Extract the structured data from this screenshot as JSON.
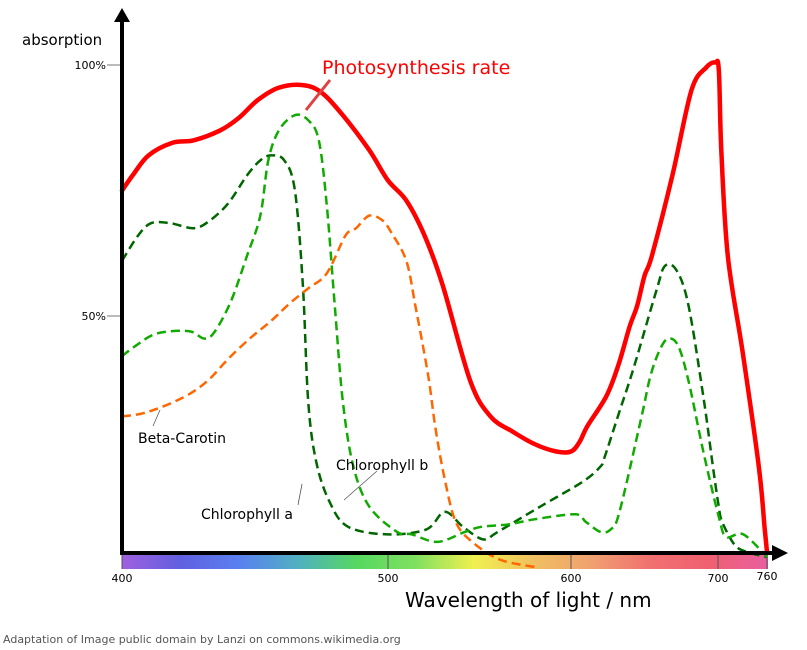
{
  "credit": "Adaptation of Image public domain by Lanzi on commons.wikimedia.org",
  "chart_data": {
    "type": "line",
    "title": "",
    "xlabel": "Wavelength of light / nm",
    "ylabel": "absorption",
    "xlim": [
      400,
      760
    ],
    "ylim": [
      0,
      100
    ],
    "x_ticks": [
      400,
      500,
      600,
      700,
      760
    ],
    "x_tick_labels": [
      "400",
      "500",
      "600",
      "700",
      "760"
    ],
    "y_ticks": [
      50,
      100
    ],
    "y_tick_labels": [
      "50%",
      "100%"
    ],
    "grid": false,
    "x_axis_spectrum_bar": true,
    "series": [
      {
        "name": "Photosynthesis rate",
        "style": "solid",
        "color": "#ff0000",
        "label_color": "#ff0000",
        "x": [
          400,
          404,
          410,
          419,
          427,
          437,
          444,
          451,
          459,
          468,
          475,
          483,
          493,
          500,
          510,
          520,
          530,
          545,
          556,
          568,
          580,
          592,
          600,
          606,
          611,
          624,
          632,
          640,
          645,
          650,
          655,
          669,
          682,
          692,
          698,
          701,
          704,
          712,
          730,
          750,
          757,
          760
        ],
        "y": [
          75,
          78,
          82,
          84.5,
          85,
          87,
          89.5,
          93,
          95.5,
          96,
          94.5,
          90,
          83,
          77,
          73,
          66,
          56,
          37,
          30,
          27,
          24.5,
          23,
          23,
          25,
          28,
          34,
          40,
          48,
          52,
          58,
          62,
          78,
          95,
          99.5,
          100.5,
          99,
          83,
          62,
          43,
          20,
          8,
          3
        ],
        "label": "Photosynthesis rate"
      },
      {
        "name": "Chlorophyll a",
        "style": "dashed",
        "color": "#006600",
        "x": [
          400,
          406,
          411,
          418,
          427,
          433,
          440,
          447,
          452,
          456,
          461,
          465,
          468,
          470,
          473,
          478,
          485,
          500,
          521,
          531,
          541,
          552,
          560,
          583,
          608,
          620,
          623,
          633,
          643,
          658,
          664,
          672,
          680,
          690,
          697,
          701,
          705,
          720,
          735,
          760
        ],
        "y": [
          61,
          66,
          68.5,
          68.5,
          67.5,
          69,
          72.5,
          78,
          81,
          82,
          81,
          75,
          56,
          33,
          21,
          13,
          8,
          6.5,
          7.5,
          11,
          8,
          5.5,
          7,
          12,
          17,
          20,
          22,
          31,
          40,
          55,
          60,
          59,
          52,
          34,
          19,
          12,
          9,
          4.5,
          3,
          2
        ]
      },
      {
        "name": "Chlorophyll b",
        "style": "dashed",
        "color": "#11aa00",
        "x": [
          400,
          405,
          413,
          425,
          431,
          435,
          441,
          447,
          452,
          455,
          459,
          465,
          470,
          474,
          477,
          480,
          483,
          487,
          493,
          505,
          513,
          527,
          542,
          551,
          566,
          580,
          603,
          610,
          620,
          627,
          633,
          648,
          654,
          660,
          666,
          673,
          680,
          690,
          701,
          710,
          731,
          760
        ],
        "y": [
          42,
          44,
          46.5,
          47,
          45.5,
          47,
          53,
          62,
          70,
          81,
          87,
          90,
          89,
          85,
          72,
          52,
          33,
          20,
          12,
          7,
          6.5,
          5,
          7,
          8,
          8.5,
          9.5,
          10.5,
          9,
          7,
          7.5,
          11,
          30,
          38,
          43,
          45.5,
          44,
          37,
          23,
          10,
          6,
          6.5,
          2
        ]
      },
      {
        "name": "Beta-Carotin",
        "style": "dashed",
        "color": "#ff6600",
        "x": [
          400,
          407,
          413,
          420,
          427,
          433,
          440,
          448,
          456,
          463,
          470,
          477,
          484,
          488,
          493,
          498,
          502,
          510,
          515,
          522,
          526,
          531,
          537,
          546,
          561,
          580
        ],
        "y": [
          30,
          30.5,
          31.5,
          33,
          35,
          37.5,
          41.5,
          45.5,
          49,
          52.5,
          55.5,
          58.5,
          66,
          67.5,
          70,
          69,
          66.5,
          61,
          52,
          38,
          27.5,
          17.5,
          9,
          5,
          1.5,
          0
        ]
      }
    ],
    "annotations": [
      {
        "text": "Photosynthesis rate",
        "target": "Photosynthesis rate"
      },
      {
        "text": "Chlorophyll a",
        "target": "Chlorophyll a"
      },
      {
        "text": "Chlorophyll b",
        "target": "Chlorophyll b"
      },
      {
        "text": "Beta-Carotin",
        "target": "Beta-Carotin"
      }
    ],
    "spectrum_colors": [
      "#a060e0",
      "#6060e0",
      "#5a80f0",
      "#50b0c0",
      "#55d860",
      "#80e060",
      "#f0f050",
      "#f0c060",
      "#f0a070",
      "#f07070",
      "#f06070",
      "#e860a0"
    ]
  }
}
